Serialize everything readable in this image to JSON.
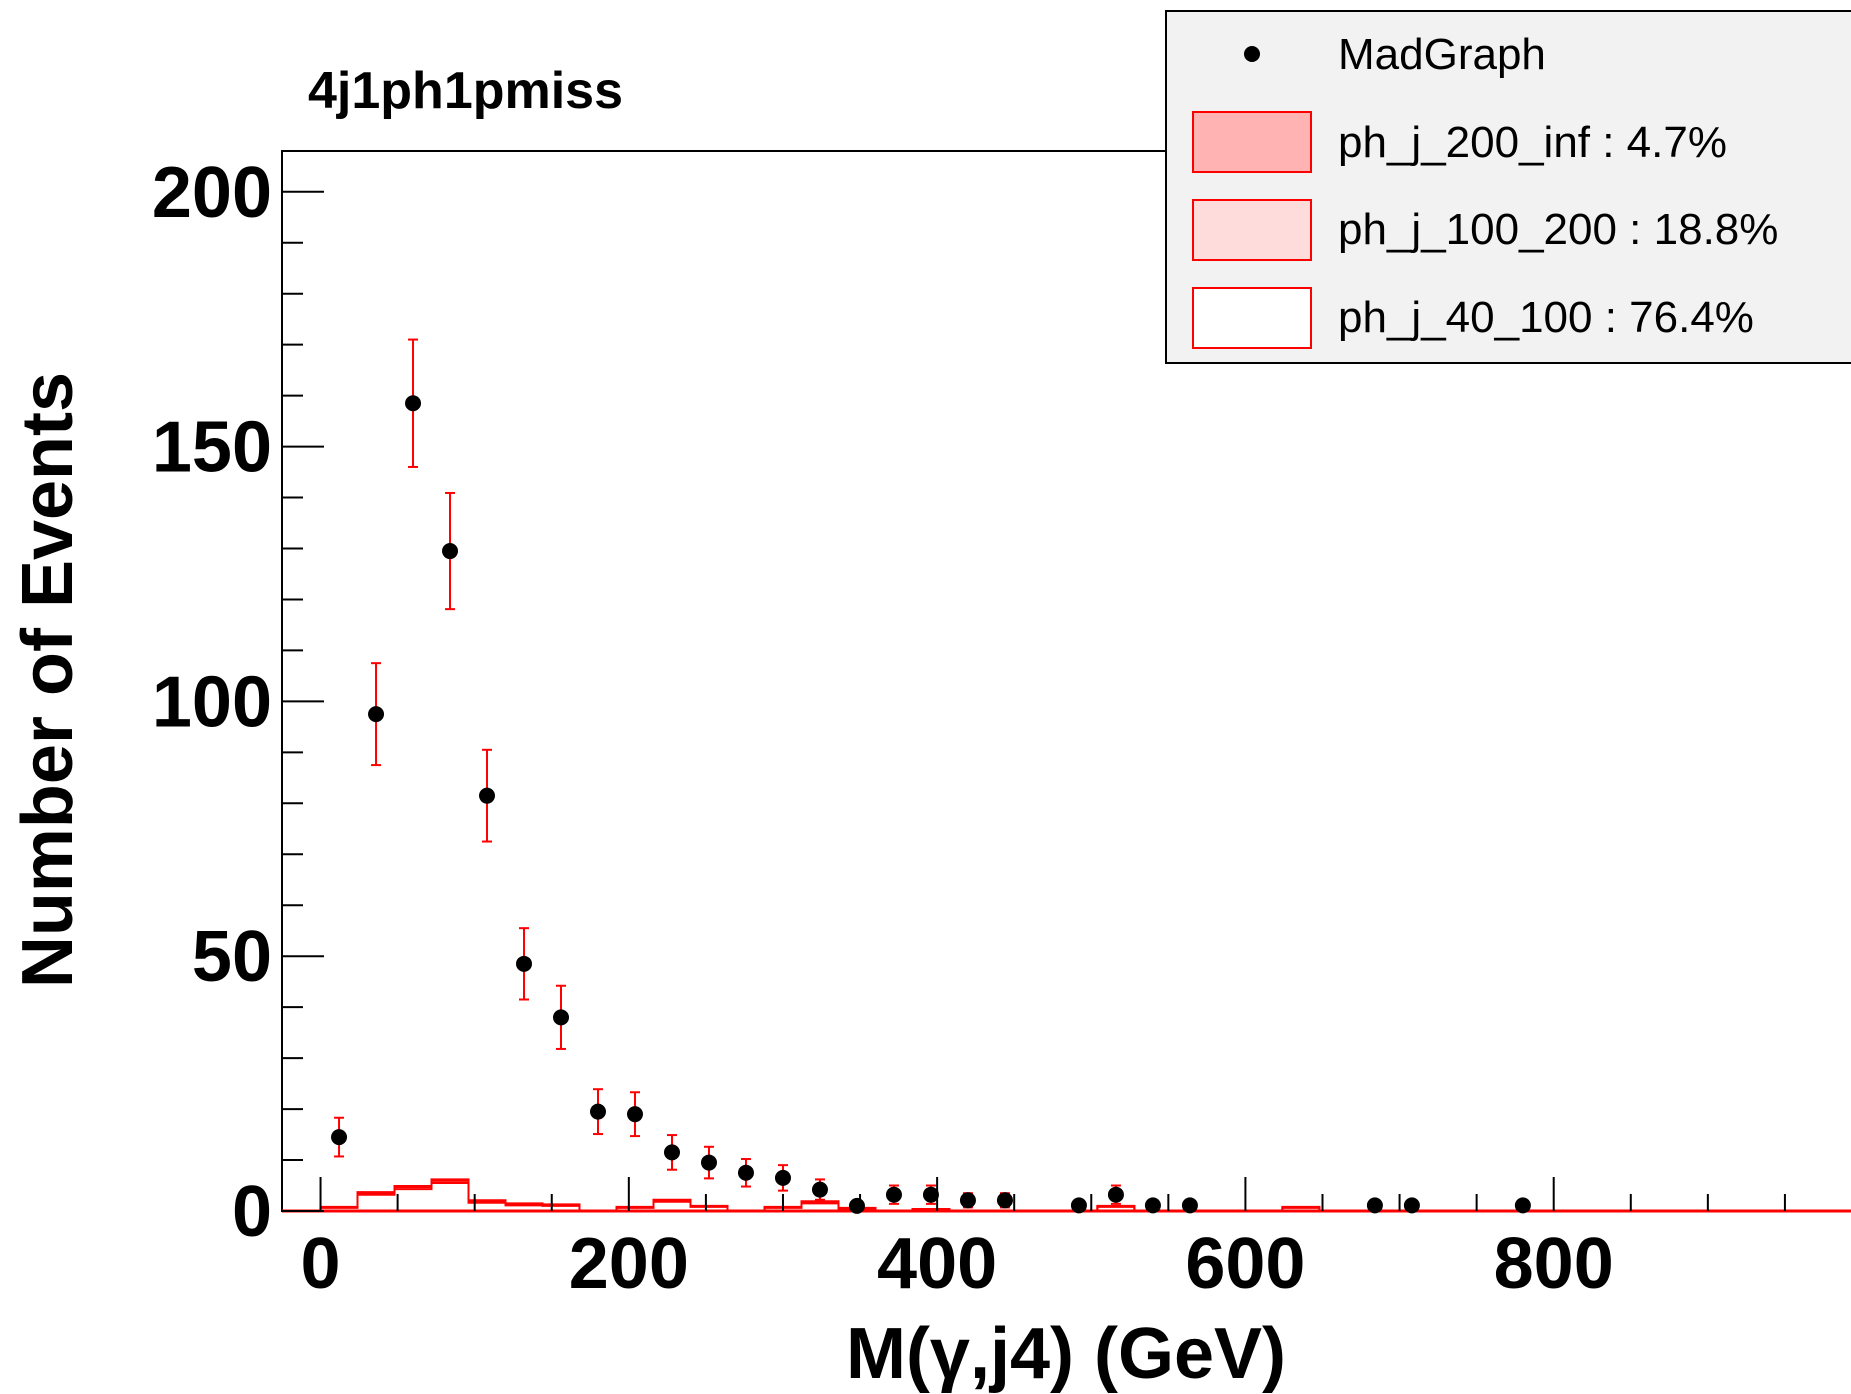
{
  "chart_data": {
    "type": "scatter",
    "title": "4j1ph1pmiss",
    "xlabel": "M(γ,j4) (GeV)",
    "ylabel": "Number of Events",
    "xlim": [
      -25,
      1000
    ],
    "ylim": [
      0,
      208
    ],
    "x_ticks": [
      0,
      200,
      400,
      600,
      800
    ],
    "y_ticks": [
      0,
      50,
      100,
      150,
      200
    ],
    "grid": false,
    "legend_position": "top-right",
    "colors": {
      "points": "#000000",
      "errors": "#ff0000",
      "hist_line": "#ff0000",
      "frame": "#000000",
      "legend_bg": "#f2f2f2",
      "fill_200_inf": "#ffb3b3",
      "fill_100_200": "#ffdcdc",
      "fill_40_100": "#ffffff"
    },
    "legend": [
      {
        "label": "MadGraph",
        "kind": "marker"
      },
      {
        "label": "ph_j_200_inf : 4.7%",
        "kind": "fill_200_inf"
      },
      {
        "label": "ph_j_100_200 : 18.8%",
        "kind": "fill_100_200"
      },
      {
        "label": "ph_j_40_100 : 76.4%",
        "kind": "fill_40_100"
      }
    ],
    "points": [
      {
        "x": 12,
        "y": 14.5,
        "err": 3.8
      },
      {
        "x": 36,
        "y": 97.5,
        "err": 10
      },
      {
        "x": 60,
        "y": 158.5,
        "err": 12.5
      },
      {
        "x": 84,
        "y": 129.5,
        "err": 11.4
      },
      {
        "x": 108,
        "y": 81.5,
        "err": 9
      },
      {
        "x": 132,
        "y": 48.5,
        "err": 7
      },
      {
        "x": 156,
        "y": 38,
        "err": 6.2
      },
      {
        "x": 180,
        "y": 19.5,
        "err": 4.4
      },
      {
        "x": 204,
        "y": 19,
        "err": 4.3
      },
      {
        "x": 228,
        "y": 11.5,
        "err": 3.4
      },
      {
        "x": 252,
        "y": 9.5,
        "err": 3.1
      },
      {
        "x": 276,
        "y": 7.5,
        "err": 2.7
      },
      {
        "x": 300,
        "y": 6.5,
        "err": 2.5
      },
      {
        "x": 324,
        "y": 4.2,
        "err": 2
      },
      {
        "x": 348,
        "y": 1,
        "err": 1
      },
      {
        "x": 372,
        "y": 3.2,
        "err": 1.8
      },
      {
        "x": 396,
        "y": 3.2,
        "err": 1.8
      },
      {
        "x": 420,
        "y": 2.1,
        "err": 1.4
      },
      {
        "x": 444,
        "y": 2.1,
        "err": 1.4
      },
      {
        "x": 492,
        "y": 1.1,
        "err": 1
      },
      {
        "x": 516,
        "y": 3.2,
        "err": 1.8
      },
      {
        "x": 540,
        "y": 1.1,
        "err": 1
      },
      {
        "x": 564,
        "y": 1.1,
        "err": 1
      },
      {
        "x": 684,
        "y": 1.1,
        "err": 1
      },
      {
        "x": 708,
        "y": 1.1,
        "err": 1
      },
      {
        "x": 780,
        "y": 1.1,
        "err": 1
      }
    ],
    "histogram": {
      "bin_edges": [
        0,
        24,
        48,
        72,
        96,
        120,
        144,
        168,
        192,
        216,
        240,
        264,
        288,
        312,
        336,
        360,
        384,
        408,
        432,
        456,
        480,
        504,
        528,
        552,
        576,
        600,
        624,
        648,
        672,
        696,
        720,
        744,
        768,
        792,
        816,
        840,
        864,
        888,
        912,
        936,
        960,
        984
      ],
      "series": [
        {
          "name": "ph_j_40_100 : 76.4%",
          "values": [
            0.6,
            3.2,
            4.3,
            5.5,
            1.6,
            1.1,
            1,
            0,
            0.6,
            1.8,
            0.8,
            0,
            0.6,
            1.5,
            0.4,
            0,
            0.2,
            0,
            0,
            0,
            0,
            0.8,
            0,
            0,
            0,
            0,
            0.6,
            0,
            0,
            0,
            0,
            0,
            0,
            0,
            0,
            0,
            0,
            0,
            0,
            0,
            0
          ]
        },
        {
          "name": "ph_j_100_200 : 18.8%",
          "values": [
            0.7,
            3.5,
            4.7,
            5.9,
            1.9,
            1.3,
            1.2,
            0,
            0.7,
            2,
            0.9,
            0,
            0.7,
            1.7,
            0.5,
            0,
            0.3,
            0,
            0,
            0,
            0,
            0.9,
            0,
            0,
            0,
            0,
            0.7,
            0,
            0,
            0,
            0,
            0,
            0,
            0,
            0,
            0,
            0,
            0,
            0,
            0,
            0
          ]
        },
        {
          "name": "ph_j_200_inf : 4.7%",
          "values": [
            0.8,
            3.7,
            4.9,
            6.2,
            2.1,
            1.5,
            1.3,
            0,
            0.8,
            2.2,
            1,
            0,
            0.8,
            1.9,
            0.6,
            0,
            0.4,
            0,
            0,
            0,
            0,
            1,
            0,
            0,
            0,
            0,
            0.8,
            0,
            0,
            0,
            0,
            0,
            0,
            0,
            0,
            0,
            0,
            0,
            0,
            0,
            0
          ]
        }
      ]
    }
  }
}
